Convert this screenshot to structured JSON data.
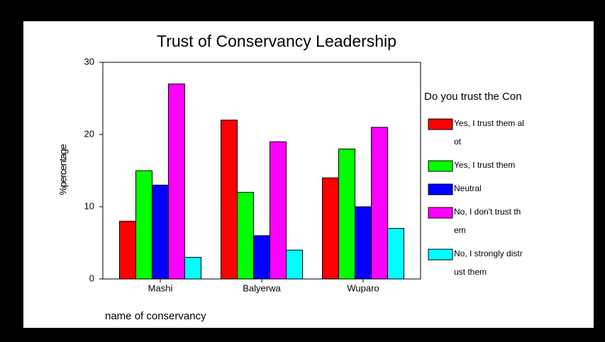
{
  "chart_data": {
    "type": "bar",
    "title": "Trust of Conservancy Leadership",
    "x_label": "name of conservancy",
    "y_label": "%percentage",
    "legend_title": "Do you trust the Con",
    "categories": [
      "Mashi",
      "Balyerwa",
      "Wuparo"
    ],
    "series": [
      {
        "name": "Yes, I trust them alot",
        "color": "#ff0000",
        "values": [
          8,
          22,
          14
        ]
      },
      {
        "name": "Yes, I trust them",
        "color": "#00ff00",
        "values": [
          15,
          12,
          18
        ]
      },
      {
        "name": "Neutral",
        "color": "#0000ff",
        "values": [
          13,
          6,
          10
        ]
      },
      {
        "name": "No, I don't trust them",
        "color": "#ff00ff",
        "values": [
          27,
          19,
          21
        ]
      },
      {
        "name": "No, I strongly distrust them",
        "color": "#00ffff",
        "values": [
          3,
          4,
          7
        ]
      }
    ],
    "ylim": [
      0,
      30
    ],
    "yticks": [
      0,
      10,
      20,
      30
    ],
    "legend": "right"
  }
}
